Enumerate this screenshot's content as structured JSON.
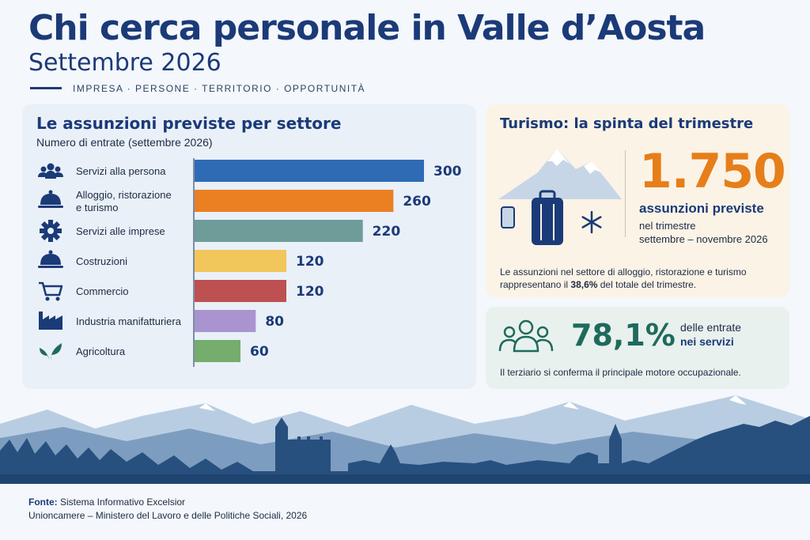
{
  "header": {
    "title": "Chi cerca personale in Valle d’Aosta",
    "subtitle": "Settembre 2026",
    "tagline": "IMPRESA · PERSONE · TERRITORIO · OPPORTUNITÀ"
  },
  "chart_data": {
    "type": "bar",
    "orientation": "horizontal",
    "title": "Le assunzioni previste per settore",
    "subtitle": "Numero di entrate (settembre 2026)",
    "categories": [
      "Servizi alla persona",
      "Alloggio, ristorazione e turismo",
      "Servizi alle imprese",
      "Costruzioni",
      "Commercio",
      "Industria manifatturiera",
      "Agricoltura"
    ],
    "category_lines": [
      [
        "Servizi alla persona"
      ],
      [
        "Alloggio, ristorazione",
        "e turismo"
      ],
      [
        "Servizi alle imprese"
      ],
      [
        "Costruzioni"
      ],
      [
        "Commercio"
      ],
      [
        "Industria manifatturiera"
      ],
      [
        "Agricoltura"
      ]
    ],
    "values": [
      300,
      260,
      220,
      120,
      120,
      80,
      60
    ],
    "value_labels": [
      "300",
      "260",
      "220",
      "120",
      "120",
      "80",
      "60"
    ],
    "colors": [
      "#2f6bb5",
      "#ea8022",
      "#6e9c99",
      "#f2c65a",
      "#bd5050",
      "#a994cf",
      "#74ad6c"
    ],
    "icons": [
      "people-icon",
      "cloche-icon",
      "gear-icon",
      "cloche-icon",
      "cart-icon",
      "factory-icon",
      "leaf-icon"
    ],
    "xlim": [
      0,
      300
    ]
  },
  "tourism": {
    "title": "Turismo: la spinta del trimestre",
    "big_number": "1.750",
    "label": "assunzioni previste",
    "period_line1": "nel trimestre",
    "period_line2": "settembre – novembre 2026",
    "note_before": "Le assunzioni nel settore di alloggio, ristorazione e turismo rappresentano il ",
    "note_bold": "38,6%",
    "note_after": " del totale del trimestre."
  },
  "services": {
    "big_number": "78,1%",
    "line1": "delle entrate",
    "line2": "nei servizi",
    "note": "Il terziario si conferma il principale motore occupazionale."
  },
  "footer": {
    "source_label": "Fonte:",
    "source_text": " Sistema Informativo Excelsior",
    "line2": "Unioncamere – Ministero del Lavoro e delle Politiche Sociali, 2026"
  },
  "colors": {
    "navy": "#1b3a78",
    "orange": "#e67e1a",
    "teal": "#1f6a5c"
  }
}
